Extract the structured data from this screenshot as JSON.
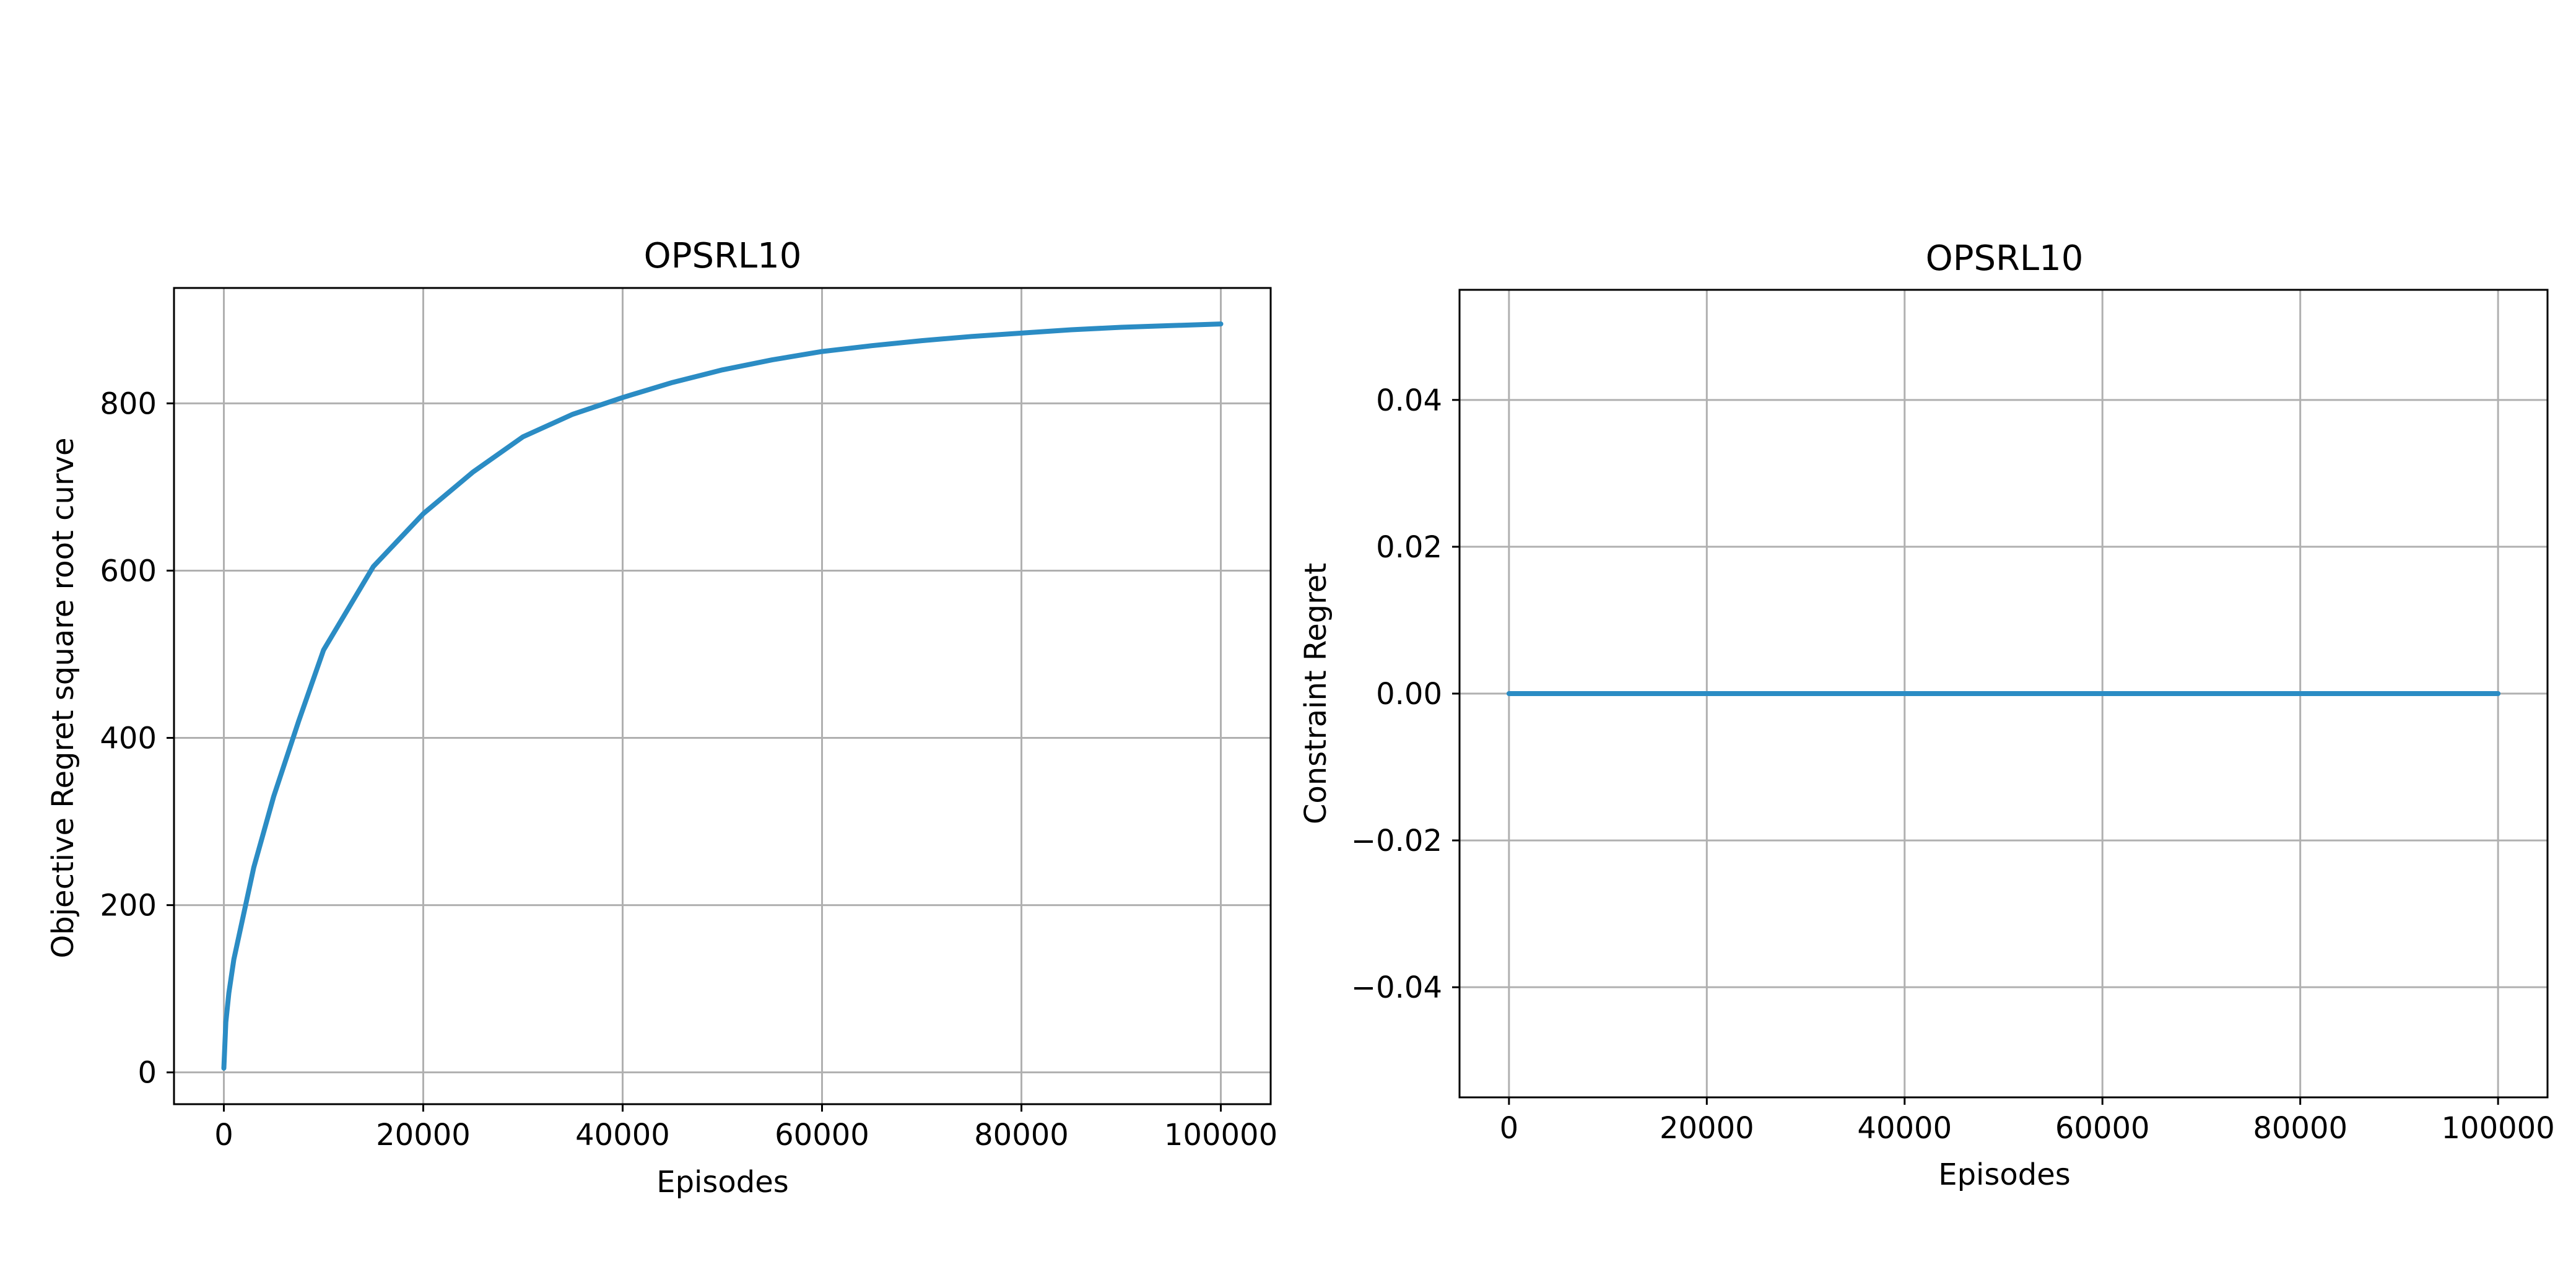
{
  "chart_data": [
    {
      "type": "line",
      "title": "OPSRL10",
      "xlabel": "Episodes",
      "ylabel": "Objective Regret square root curve",
      "xlim": [
        -5000,
        105000
      ],
      "ylim": [
        -38,
        938
      ],
      "xticks": [
        0,
        20000,
        40000,
        60000,
        80000,
        100000
      ],
      "xtick_labels": [
        "0",
        "20000",
        "40000",
        "60000",
        "80000",
        "100000"
      ],
      "yticks": [
        0,
        200,
        400,
        600,
        800
      ],
      "ytick_labels": [
        "0",
        "200",
        "400",
        "600",
        "800"
      ],
      "grid": true,
      "series": [
        {
          "color": "#2b8cc4",
          "x": [
            0,
            200,
            500,
            1000,
            2000,
            3000,
            5000,
            7500,
            10000,
            15000,
            20000,
            25000,
            30000,
            35000,
            40000,
            45000,
            50000,
            55000,
            60000,
            65000,
            70000,
            75000,
            80000,
            85000,
            90000,
            95000,
            100000
          ],
          "y": [
            5,
            60,
            95,
            135,
            190,
            245,
            330,
            420,
            505,
            605,
            668,
            718,
            760,
            787,
            807,
            825,
            840,
            852,
            862,
            869,
            875,
            880,
            884,
            888,
            891,
            893,
            895
          ]
        }
      ]
    },
    {
      "type": "line",
      "title": "OPSRL10",
      "xlabel": "Episodes",
      "ylabel": "Constraint Regret",
      "xlim": [
        -5000,
        105000
      ],
      "ylim": [
        -0.055,
        0.055
      ],
      "xticks": [
        0,
        20000,
        40000,
        60000,
        80000,
        100000
      ],
      "xtick_labels": [
        "0",
        "20000",
        "40000",
        "60000",
        "80000",
        "100000"
      ],
      "yticks": [
        -0.04,
        -0.02,
        0.0,
        0.02,
        0.04
      ],
      "ytick_labels": [
        "−0.04",
        "−0.02",
        "0.00",
        "0.02",
        "0.04"
      ],
      "grid": true,
      "series": [
        {
          "color": "#2b8cc4",
          "x": [
            0,
            100000
          ],
          "y": [
            0,
            0
          ]
        }
      ]
    }
  ]
}
